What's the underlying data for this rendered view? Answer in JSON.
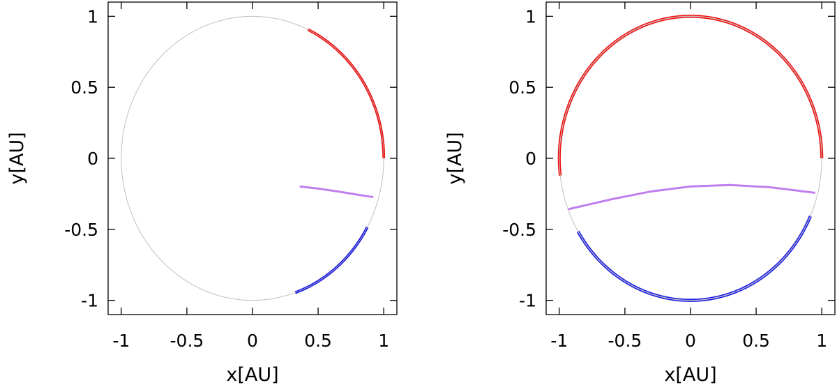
{
  "chart_data": [
    {
      "type": "line",
      "xlabel": "x[AU]",
      "ylabel": "y[AU]",
      "xlim": [
        -1.1,
        1.1
      ],
      "ylim": [
        -1.1,
        1.1
      ],
      "xticks": [
        "-1",
        "-0.5",
        "0",
        "0.5",
        "1"
      ],
      "yticks": [
        "1",
        "0.5",
        "0",
        "-0.5",
        "-1"
      ],
      "xtick_values": [
        -1,
        -0.5,
        0,
        0.5,
        1
      ],
      "ytick_values": [
        1,
        0.5,
        0,
        -0.5,
        -1
      ],
      "grid": false,
      "reference_orbit": {
        "shape": "unit-circle",
        "radius": 1,
        "color": "#c0c0c0"
      },
      "series": [
        {
          "color": "#ee1111",
          "kind": "arc",
          "radius": 1,
          "start_deg": 65,
          "end_deg": 0,
          "offset": 0.006
        },
        {
          "color": "#c07ff0",
          "kind": "curve",
          "x": [
            0.36,
            0.5,
            0.65,
            0.8,
            0.92
          ],
          "y": [
            -0.2,
            -0.215,
            -0.235,
            -0.258,
            -0.275
          ]
        },
        {
          "color": "#1a1ae0",
          "kind": "arc",
          "radius": 1,
          "start_deg": -71,
          "end_deg": -29,
          "offset": 0.006
        }
      ]
    },
    {
      "type": "line",
      "xlabel": "x[AU]",
      "ylabel": "y[AU]",
      "xlim": [
        -1.1,
        1.1
      ],
      "ylim": [
        -1.1,
        1.1
      ],
      "xticks": [
        "-1",
        "-0.5",
        "0",
        "0.5",
        "1"
      ],
      "yticks": [
        "1",
        "0.5",
        "0",
        "-0.5",
        "-1"
      ],
      "xtick_values": [
        -1,
        -0.5,
        0,
        0.5,
        1
      ],
      "ytick_values": [
        1,
        0.5,
        0,
        -0.5,
        -1
      ],
      "grid": false,
      "reference_orbit": {
        "shape": "unit-circle",
        "radius": 1,
        "color": "#c0c0c0"
      },
      "series": [
        {
          "color": "#ee1111",
          "kind": "arc",
          "radius": 1,
          "start_deg": 0,
          "end_deg": 187,
          "offset": 0.007
        },
        {
          "color": "#c07ff0",
          "kind": "curve",
          "x": [
            -0.93,
            -0.6,
            -0.3,
            0.0,
            0.3,
            0.6,
            0.95
          ],
          "y": [
            -0.36,
            -0.29,
            -0.235,
            -0.2,
            -0.19,
            -0.205,
            -0.245
          ]
        },
        {
          "color": "#1a1ae0",
          "kind": "arc",
          "radius": 1,
          "start_deg": 211,
          "end_deg": 336,
          "offset": 0.007
        }
      ]
    }
  ]
}
